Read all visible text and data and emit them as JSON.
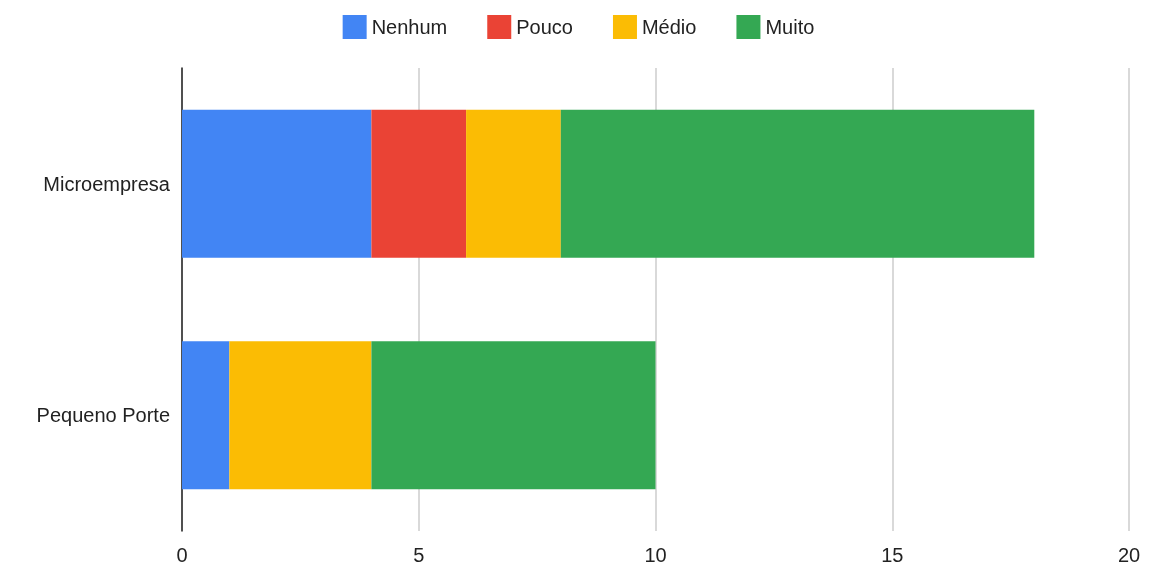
{
  "chart_data": {
    "type": "bar",
    "orientation": "horizontal",
    "stacked": true,
    "categories": [
      "Microempresa",
      "Pequeno Porte"
    ],
    "series": [
      {
        "name": "Nenhum",
        "color": "#4285f4",
        "values": [
          4,
          1
        ]
      },
      {
        "name": "Pouco",
        "color": "#ea4335",
        "values": [
          2,
          0
        ]
      },
      {
        "name": "Médio",
        "color": "#fbbc04",
        "values": [
          2,
          3
        ]
      },
      {
        "name": "Muito",
        "color": "#34a853",
        "values": [
          10,
          6
        ]
      }
    ],
    "xlim": [
      0,
      20
    ],
    "xticks": [
      0,
      5,
      10,
      15,
      20
    ],
    "grid": "x",
    "legend": "top"
  }
}
